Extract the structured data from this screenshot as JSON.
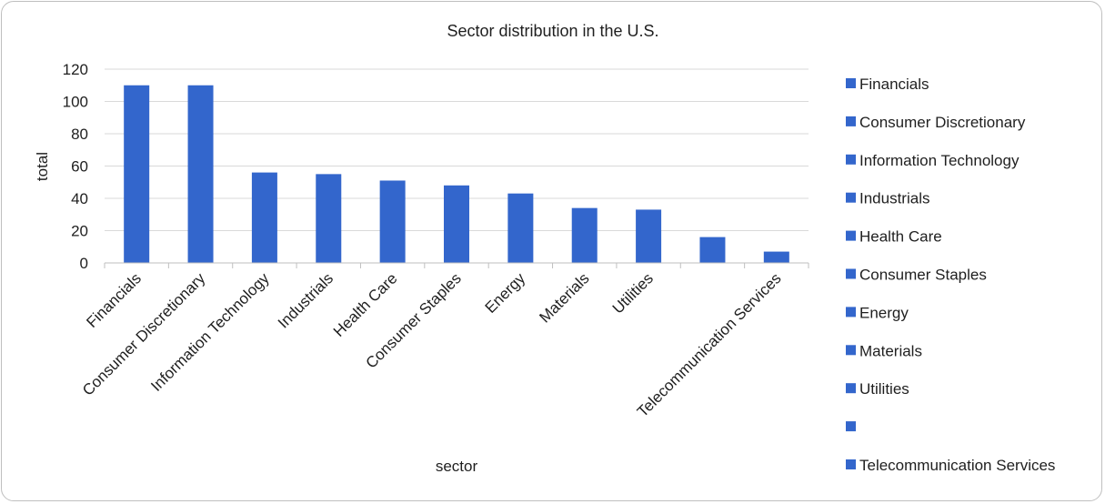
{
  "chart_data": {
    "type": "bar",
    "title": "Sector distribution in the U.S.",
    "xlabel": "sector",
    "ylabel": "total",
    "ylim": [
      0,
      120
    ],
    "yticks": [
      0,
      20,
      40,
      60,
      80,
      100,
      120
    ],
    "grid": true,
    "legend_position": "right",
    "bar_color": "#3366cc",
    "categories": [
      "Financials",
      "Consumer Discretionary",
      "Information Technology",
      "Industrials",
      "Health Care",
      "Consumer Staples",
      "Energy",
      "Materials",
      "Utilities",
      "",
      "Telecommunication Services"
    ],
    "values": [
      110,
      110,
      56,
      55,
      51,
      48,
      43,
      34,
      33,
      16,
      7
    ]
  }
}
